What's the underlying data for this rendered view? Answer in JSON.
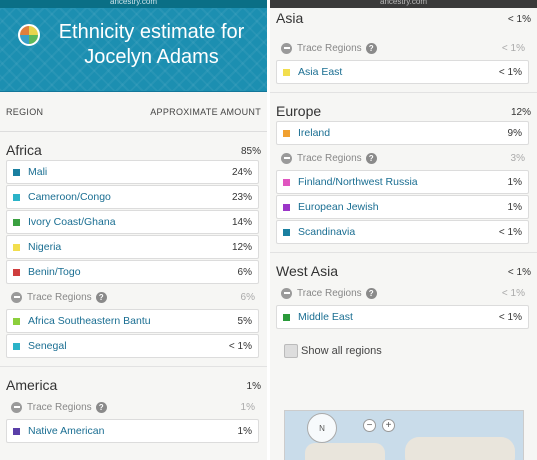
{
  "left": {
    "urlbar": "ancestry.com",
    "title": "Ethnicity estimate for Jocelyn Adams",
    "col_region": "REGION",
    "col_amount": "APPROXIMATE AMOUNT",
    "sections": [
      {
        "name": "Africa",
        "pct": "85%",
        "items": [
          {
            "name": "Mali",
            "pct": "24%",
            "color": "#1a7fa0"
          },
          {
            "name": "Cameroon/Congo",
            "pct": "23%",
            "color": "#2bb3c8"
          },
          {
            "name": "Ivory Coast/Ghana",
            "pct": "14%",
            "color": "#3aa040"
          },
          {
            "name": "Nigeria",
            "pct": "12%",
            "color": "#f2de4e"
          },
          {
            "name": "Benin/Togo",
            "pct": "6%",
            "color": "#cf3d3d"
          }
        ],
        "trace": {
          "label": "Trace Regions",
          "pct": "6%"
        },
        "trace_items": [
          {
            "name": "Africa Southeastern Bantu",
            "pct": "5%",
            "color": "#8ccf3c"
          },
          {
            "name": "Senegal",
            "pct": "< 1%",
            "color": "#2bb3c8"
          }
        ]
      },
      {
        "name": "America",
        "pct": "1%",
        "items": [],
        "trace": {
          "label": "Trace Regions",
          "pct": "1%"
        },
        "trace_items": [
          {
            "name": "Native American",
            "pct": "1%",
            "color": "#5a3fa8"
          }
        ]
      }
    ]
  },
  "right": {
    "urlbar": "ancestry.com",
    "sections": [
      {
        "name": "Asia",
        "pct": "< 1%",
        "items": [],
        "trace": {
          "label": "Trace Regions",
          "pct": "< 1%"
        },
        "trace_items": [
          {
            "name": "Asia East",
            "pct": "< 1%",
            "color": "#f2de4e"
          }
        ]
      },
      {
        "name": "Europe",
        "pct": "12%",
        "items": [
          {
            "name": "Ireland",
            "pct": "9%",
            "color": "#f0a030"
          }
        ],
        "trace": {
          "label": "Trace Regions",
          "pct": "3%"
        },
        "trace_items": [
          {
            "name": "Finland/Northwest Russia",
            "pct": "1%",
            "color": "#e055c0"
          },
          {
            "name": "European Jewish",
            "pct": "1%",
            "color": "#9b35c8"
          },
          {
            "name": "Scandinavia",
            "pct": "< 1%",
            "color": "#1a7fa0"
          }
        ]
      },
      {
        "name": "West Asia",
        "pct": "< 1%",
        "items": [],
        "trace": {
          "label": "Trace Regions",
          "pct": "< 1%"
        },
        "trace_items": [
          {
            "name": "Middle East",
            "pct": "< 1%",
            "color": "#2a9a3a"
          }
        ]
      }
    ],
    "show_all": "Show all regions",
    "map": {
      "compass_label": "N",
      "zoom_out": "−",
      "zoom_in": "+"
    }
  }
}
